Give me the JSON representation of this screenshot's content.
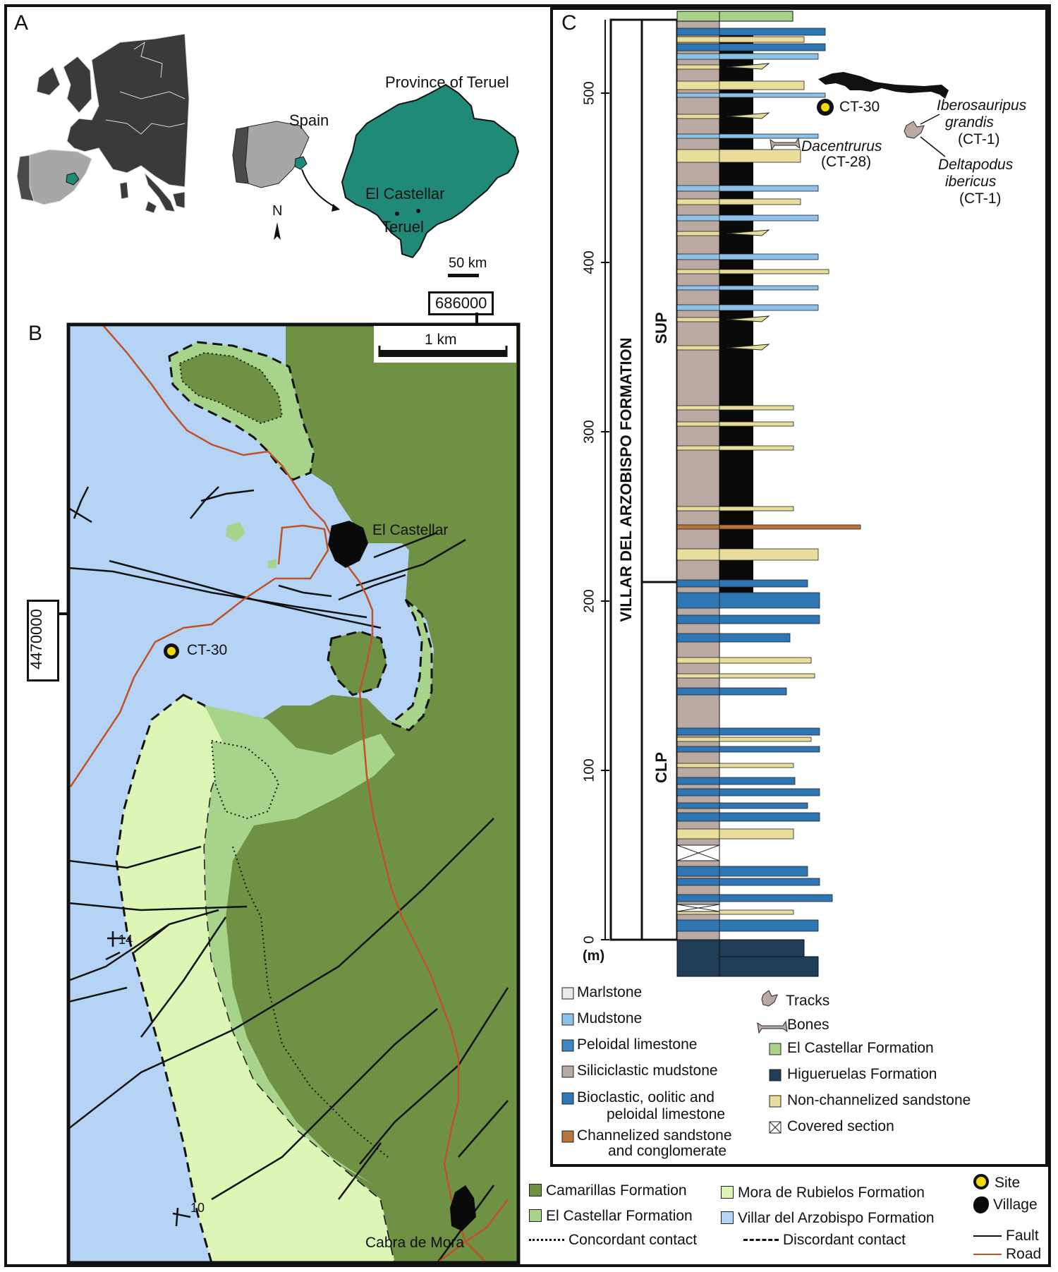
{
  "panels": {
    "a": "A",
    "b": "B",
    "c": "C"
  },
  "panel_a": {
    "province_label": "Province of Teruel",
    "spain_label": "Spain",
    "north_label": "N",
    "town_castellar": "El Castellar",
    "town_teruel": "Teruel",
    "scale_label": "50 km",
    "colors": {
      "europe": "#3a3a3a",
      "spain": "#a7a7a7",
      "portugal": "#4a4a4a",
      "teruel": "#1f8a78"
    }
  },
  "panel_b": {
    "coord_x": "686000",
    "coord_y": "4470000",
    "scale_label": "1 km",
    "village_castellar": "El Castellar",
    "village_cabra": "Cabra de Mora",
    "site_label": "CT-30",
    "dip_1": "14",
    "dip_2": "10",
    "colors": {
      "camarillas": "#6e9144",
      "castellar": "#a8d38a",
      "mora": "#ddf5b5",
      "villar": "#b5d3f5",
      "road": "#c0522a"
    }
  },
  "panel_c": {
    "formation_label": "VILLAR DEL ARZOBISPO FORMATION",
    "sup_label": "SUP",
    "clp_label": "CLP",
    "axis_unit": "(m)",
    "axis_ticks": [
      "0",
      "100",
      "200",
      "300",
      "400",
      "500"
    ],
    "site_label": "CT-30",
    "fossils": {
      "iberosauripus_1": "Iberosauripus",
      "iberosauripus_2": "grandis",
      "iberosauripus_site": "(CT-1)",
      "dacentrurus": "Dacentrurus",
      "dacentrurus_site": "(CT-28)",
      "deltapodus_1": "Deltapodus",
      "deltapodus_2": "ibericus",
      "deltapodus_site": "(CT-1)"
    },
    "legend": {
      "marlstone": "Marlstone",
      "mudstone": "Mudstone",
      "peloidal": "Peloidal limestone",
      "siliciclastic": "Siliciclastic mudstone",
      "bioclastic_1": "Bioclastic, oolitic and",
      "bioclastic_2": "peloidal limestone",
      "channelized_1": "Channelized sandstone",
      "channelized_2": "and conglomerate",
      "tracks": "Tracks",
      "bones": "Bones",
      "castellar": "El Castellar Formation",
      "higueruelas": "Higueruelas Formation",
      "nonchannel": "Non-channelized sandstone",
      "covered": "Covered section"
    }
  },
  "map_legend": {
    "camarillas": "Camarillas Formation",
    "castellar": "El Castellar Formation",
    "mora": "Mora de Rubielos Formation",
    "villar": "Villar del Arzobispo Formation",
    "concordant": "Concordant contact",
    "discordant": "Discordant contact",
    "site": "Site",
    "village": "Village",
    "fault": "Fault",
    "road": "Road"
  }
}
